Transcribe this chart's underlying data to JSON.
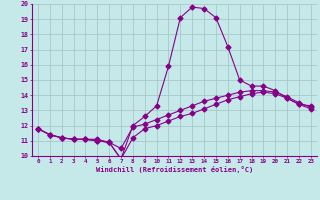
{
  "xlabel": "Windchill (Refroidissement éolien,°C)",
  "background_color": "#c5e8e8",
  "line_color": "#880088",
  "grid_color": "#a8c8c8",
  "x_hours": [
    0,
    1,
    2,
    3,
    4,
    5,
    6,
    7,
    8,
    9,
    10,
    11,
    12,
    13,
    14,
    15,
    16,
    17,
    18,
    19,
    20,
    21,
    22,
    23
  ],
  "line1": [
    11.8,
    11.4,
    11.2,
    11.1,
    11.1,
    11.1,
    10.9,
    10.5,
    11.9,
    12.1,
    12.4,
    12.7,
    13.0,
    13.3,
    13.6,
    13.8,
    14.0,
    14.2,
    14.3,
    14.3,
    14.2,
    13.9,
    13.5,
    13.2
  ],
  "line2": [
    11.8,
    11.4,
    11.2,
    11.1,
    11.1,
    11.0,
    10.9,
    9.8,
    11.2,
    11.8,
    12.0,
    12.3,
    12.6,
    12.8,
    13.1,
    13.4,
    13.7,
    13.9,
    14.1,
    14.2,
    14.1,
    13.8,
    13.4,
    13.1
  ],
  "line3": [
    11.8,
    11.4,
    11.2,
    11.1,
    11.1,
    11.0,
    10.9,
    9.8,
    12.0,
    12.6,
    13.3,
    15.9,
    19.1,
    19.8,
    19.7,
    19.1,
    17.2,
    15.0,
    14.6,
    14.6,
    14.3,
    13.8,
    13.4,
    13.3
  ],
  "ylim": [
    10,
    20
  ],
  "xlim": [
    -0.5,
    23.5
  ],
  "yticks": [
    10,
    11,
    12,
    13,
    14,
    15,
    16,
    17,
    18,
    19,
    20
  ],
  "xticks": [
    0,
    1,
    2,
    3,
    4,
    5,
    6,
    7,
    8,
    9,
    10,
    11,
    12,
    13,
    14,
    15,
    16,
    17,
    18,
    19,
    20,
    21,
    22,
    23
  ]
}
